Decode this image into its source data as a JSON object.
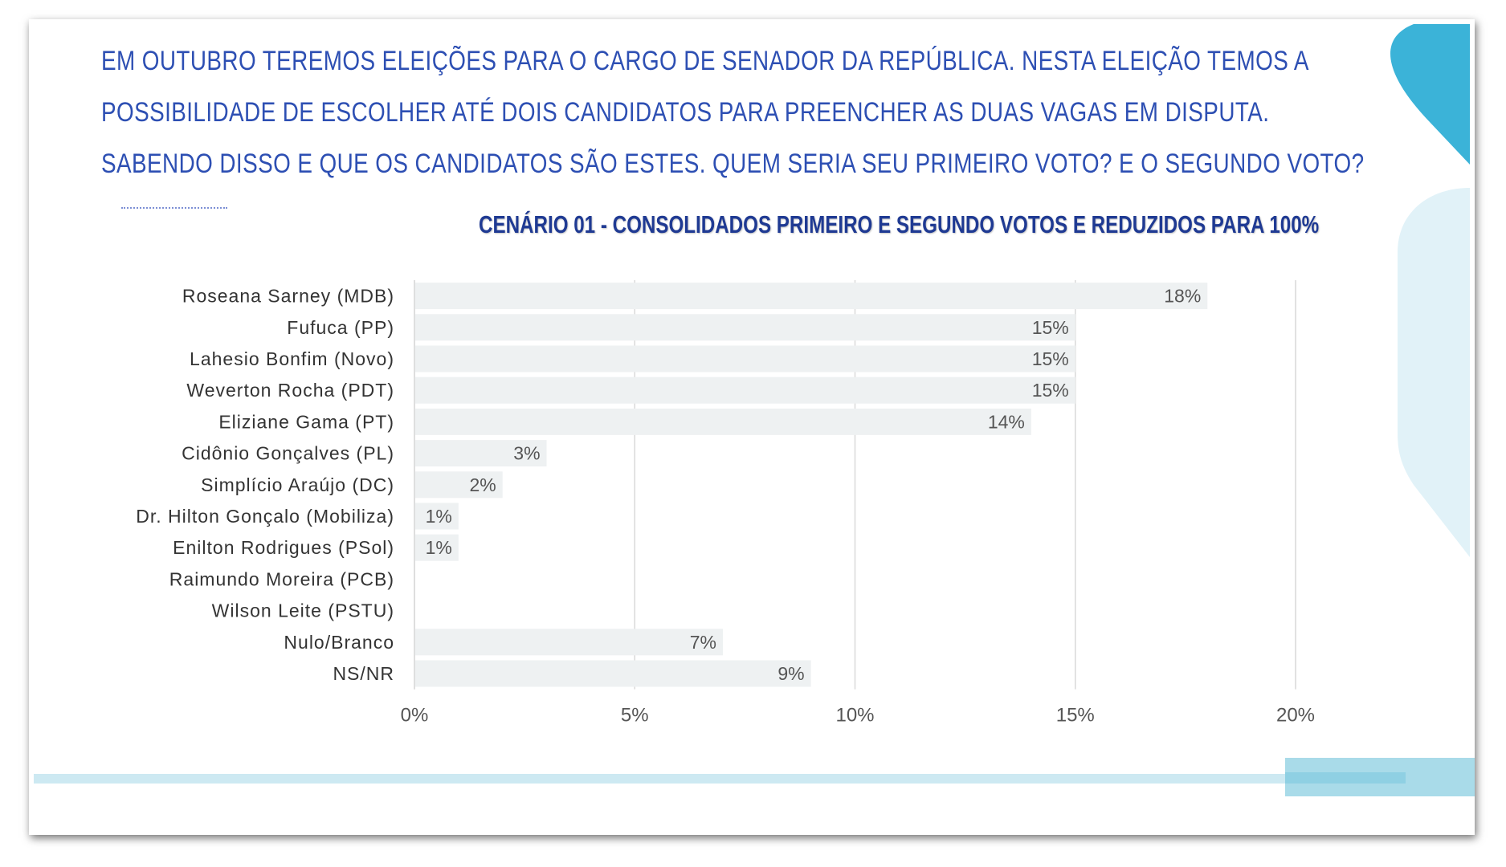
{
  "question": {
    "line1": "EM OUTUBRO TEREMOS ELEIÇÕES PARA O CARGO DE SENADOR DA REPÚBLICA. NESTA ELEIÇÃO TEMOS A",
    "line2": "POSSIBILIDADE DE ESCOLHER ATÉ DOIS CANDIDATOS PARA PREENCHER AS DUAS VAGAS EM DISPUTA.",
    "line3": "SABENDO DISSO E QUE OS CANDIDATOS SÃO ESTES. QUEM SERIA SEU PRIMEIRO VOTO? E O SEGUNDO VOTO?"
  },
  "colors": {
    "question_text": "#2d4fb3",
    "title_text": "#1f3a93",
    "bar": "#eef1f2",
    "grid": "#d9d9d9",
    "accent_dark": "#3bb3d8",
    "accent_light": "#dff1f7"
  },
  "chart_data": {
    "type": "bar",
    "orientation": "horizontal",
    "title": "CENÁRIO 01 - CONSOLIDADOS PRIMEIRO E SEGUNDO VOTOS E REDUZIDOS PARA 100%",
    "categories": [
      "Roseana Sarney (MDB)",
      "Fufuca (PP)",
      "Lahesio Bonfim (Novo)",
      "Weverton Rocha (PDT)",
      "Eliziane Gama (PT)",
      "Cidônio Gonçalves (PL)",
      "Simplício Araújo (DC)",
      "Dr. Hilton Gonçalo (Mobiliza)",
      "Enilton Rodrigues (PSol)",
      "Raimundo Moreira (PCB)",
      "Wilson Leite (PSTU)",
      "Nulo/Branco",
      "NS/NR"
    ],
    "values": [
      18,
      15,
      15,
      15,
      14,
      3,
      2,
      1,
      1,
      0,
      0,
      7,
      9
    ],
    "data_labels": [
      "18%",
      "15%",
      "15%",
      "15%",
      "14%",
      "3%",
      "2%",
      "1%",
      "1%",
      "",
      "",
      "7%",
      "9%"
    ],
    "x_ticks": [
      0,
      5,
      10,
      15,
      20
    ],
    "x_tick_labels": [
      "0%",
      "5%",
      "10%",
      "15%",
      "20%"
    ],
    "xlim": [
      0,
      20
    ],
    "grid": true,
    "legend": "none"
  }
}
